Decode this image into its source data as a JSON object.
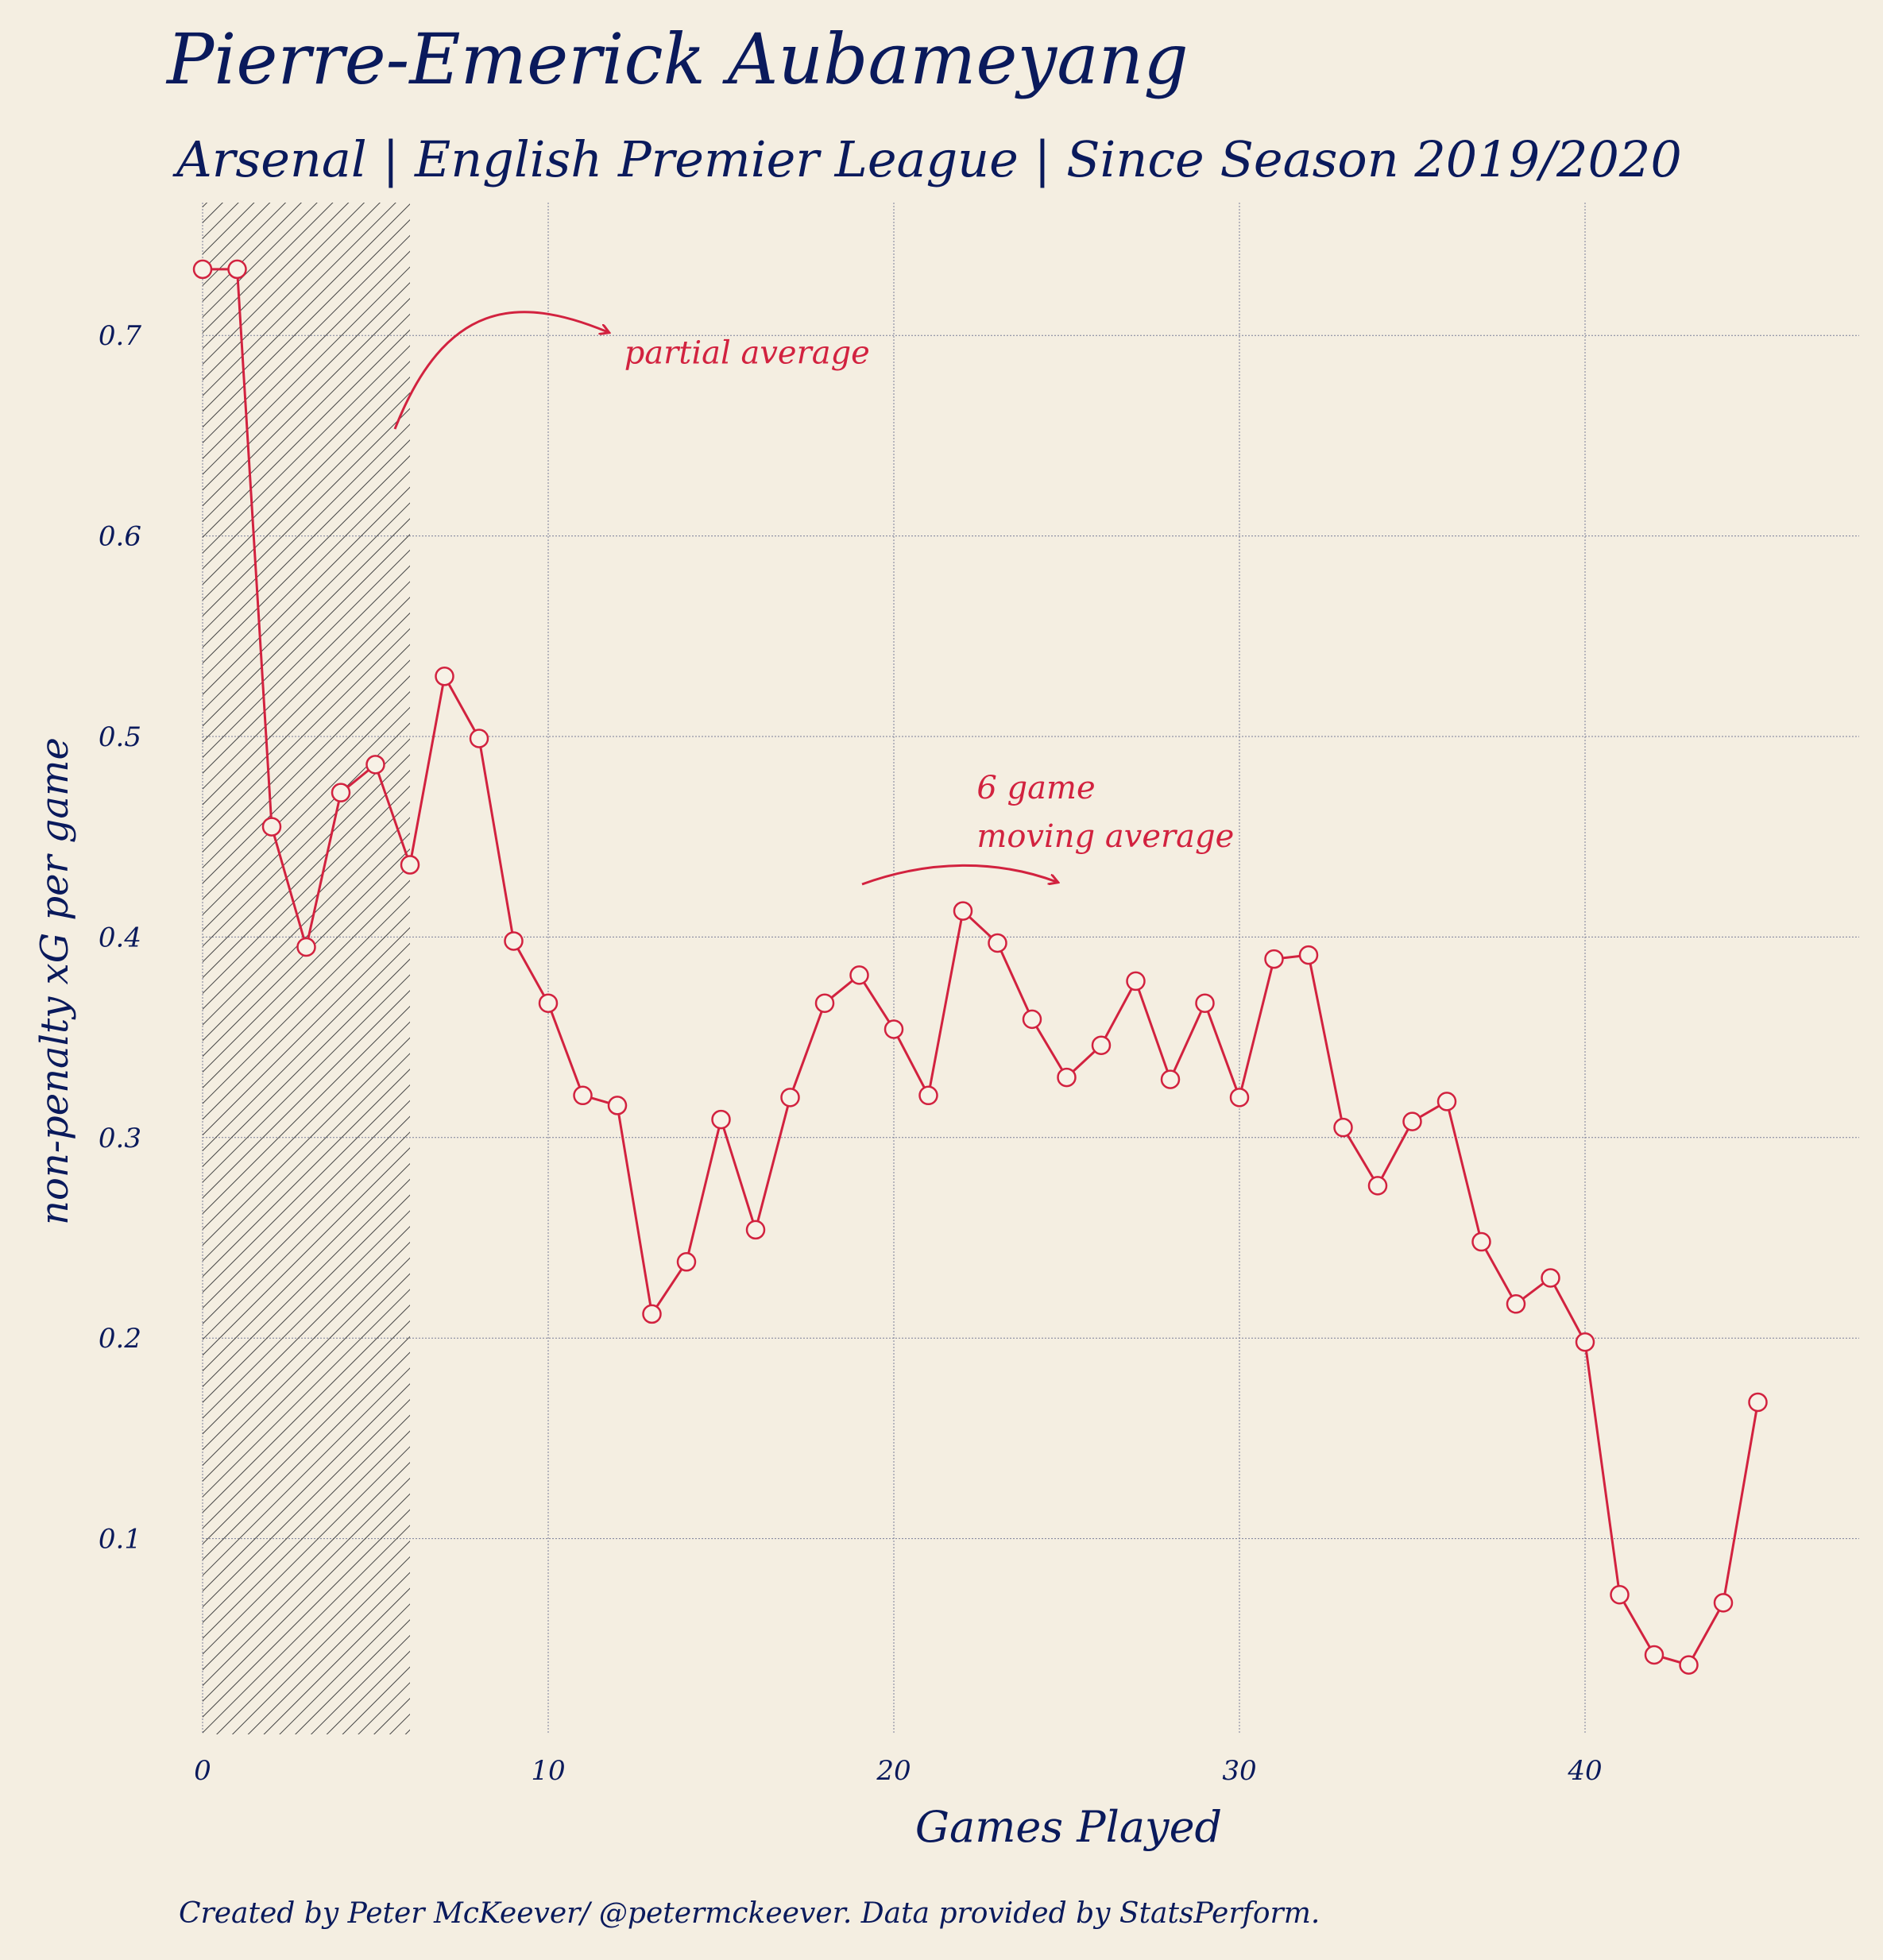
{
  "colors": {
    "background": "#f4eee1",
    "text": "#0a1a5c",
    "accent": "#d2223f",
    "grid": "#7a7f99",
    "hatch": "#444444"
  },
  "chart_data": {
    "type": "line",
    "title": "Pierre-Emerick Aubameyang",
    "subtitle": "Arsenal | English Premier League | Since Season 2019/2020",
    "xlabel": "Games Played",
    "ylabel": "non-penalty xG per game",
    "footer": "Created by Peter McKeever/ @petermckeever. Data provided by StatsPerform.",
    "xlim": [
      0,
      48
    ],
    "ylim": [
      0.01,
      0.77
    ],
    "x_ticks": [
      0,
      10,
      20,
      30,
      40
    ],
    "y_ticks": [
      0.1,
      0.2,
      0.3,
      0.4,
      0.5,
      0.6,
      0.7
    ],
    "x_tick_labels": [
      "0",
      "10",
      "20",
      "30",
      "40"
    ],
    "y_tick_labels": [
      "0.1",
      "0.2",
      "0.3",
      "0.4",
      "0.5",
      "0.6",
      "0.7"
    ],
    "grid": true,
    "shaded_region": {
      "x_start": 0,
      "x_end": 6,
      "pattern": "hatch"
    },
    "series": [
      {
        "color": "#d2223f",
        "x": [
          0,
          1,
          2,
          3,
          4,
          5,
          6,
          7,
          8,
          9,
          10,
          11,
          12,
          13,
          14,
          15,
          16,
          17,
          18,
          19,
          20,
          21,
          22,
          23,
          24,
          25,
          26,
          27,
          28,
          29,
          30,
          31,
          32,
          33,
          34,
          35,
          36,
          37,
          38,
          39,
          40,
          41,
          42,
          43,
          44,
          45
        ],
        "values": [
          0.733,
          0.733,
          0.455,
          0.395,
          0.472,
          0.486,
          0.436,
          0.53,
          0.499,
          0.398,
          0.367,
          0.321,
          0.316,
          0.212,
          0.238,
          0.309,
          0.254,
          0.32,
          0.367,
          0.381,
          0.354,
          0.321,
          0.413,
          0.397,
          0.359,
          0.33,
          0.346,
          0.378,
          0.329,
          0.367,
          0.32,
          0.389,
          0.391,
          0.305,
          0.276,
          0.308,
          0.318,
          0.248,
          0.217,
          0.23,
          0.198,
          0.072,
          0.042,
          0.037,
          0.068,
          0.168
        ]
      }
    ],
    "annotations": [
      {
        "text": "partial average",
        "x": 12.2,
        "y": 0.686
      },
      {
        "text": "6 game",
        "x": 22.4,
        "y": 0.469
      },
      {
        "text": "moving average",
        "x": 22.4,
        "y": 0.445
      }
    ]
  }
}
